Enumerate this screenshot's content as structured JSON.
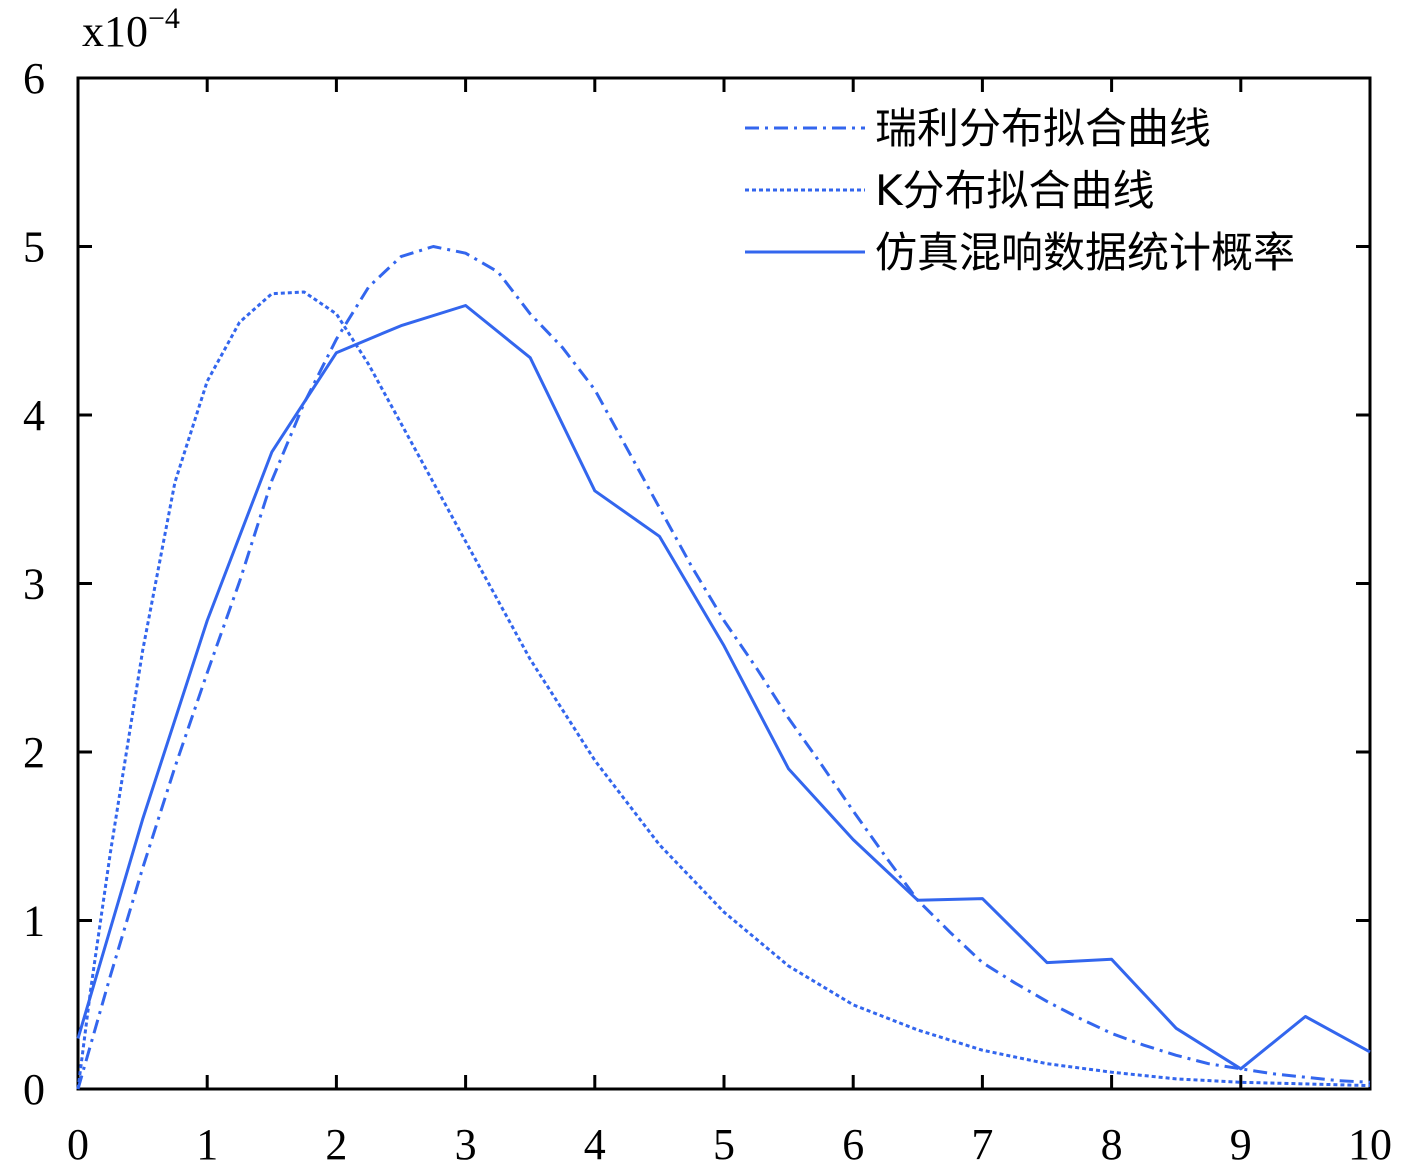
{
  "chart_data": {
    "type": "line",
    "title": "",
    "xlabel": "",
    "ylabel": "",
    "scale_label": {
      "base": "x10",
      "exponent": "−4"
    },
    "xlim": [
      0,
      10
    ],
    "ylim": [
      0,
      6
    ],
    "x_ticks": [
      "0",
      "1",
      "2",
      "3",
      "4",
      "5",
      "6",
      "7",
      "8",
      "9",
      "10"
    ],
    "y_ticks": [
      "0",
      "1",
      "2",
      "3",
      "4",
      "5",
      "6"
    ],
    "grid": false,
    "legend_position": "top-right",
    "color": "#3366ee",
    "series": [
      {
        "name": "瑞利分布拟合曲线",
        "style": "dashdot",
        "x": [
          0,
          0.25,
          0.5,
          0.75,
          1,
          1.25,
          1.5,
          1.75,
          2,
          2.25,
          2.5,
          2.75,
          3,
          3.25,
          3.5,
          3.75,
          4,
          4.25,
          4.5,
          4.75,
          5,
          5.25,
          5.5,
          5.75,
          6,
          6.25,
          6.5,
          6.75,
          7,
          7.25,
          7.5,
          7.75,
          8,
          8.25,
          8.5,
          8.75,
          9,
          9.25,
          9.5,
          9.75,
          10
        ],
        "values": [
          0,
          0.67,
          1.31,
          1.91,
          2.47,
          3.01,
          3.61,
          4.07,
          4.45,
          4.76,
          4.94,
          5.0,
          4.96,
          4.85,
          4.6,
          4.4,
          4.15,
          3.8,
          3.45,
          3.1,
          2.78,
          2.5,
          2.2,
          1.93,
          1.65,
          1.38,
          1.12,
          0.93,
          0.75,
          0.63,
          0.52,
          0.42,
          0.33,
          0.26,
          0.2,
          0.15,
          0.12,
          0.09,
          0.07,
          0.05,
          0.04
        ]
      },
      {
        "name": "K分布拟合曲线",
        "style": "dotted",
        "x": [
          0,
          0.1,
          0.25,
          0.5,
          0.75,
          1,
          1.25,
          1.5,
          1.75,
          2,
          2.25,
          2.5,
          2.75,
          3,
          3.5,
          4,
          4.5,
          5,
          5.5,
          6,
          6.5,
          7,
          7.5,
          8,
          8.5,
          9,
          9.5,
          10
        ],
        "values": [
          0,
          0.6,
          1.4,
          2.6,
          3.6,
          4.2,
          4.55,
          4.72,
          4.73,
          4.6,
          4.3,
          3.95,
          3.6,
          3.25,
          2.55,
          1.95,
          1.45,
          1.05,
          0.73,
          0.5,
          0.35,
          0.23,
          0.15,
          0.1,
          0.06,
          0.04,
          0.03,
          0.02
        ]
      },
      {
        "name": "仿真混响数据统计概率",
        "style": "solid",
        "x": [
          0,
          0.5,
          1,
          1.5,
          2,
          2.5,
          3,
          3.5,
          4,
          4.5,
          5,
          5.5,
          6,
          6.5,
          7,
          7.5,
          8,
          8.5,
          9,
          9.5,
          10
        ],
        "values": [
          0.3,
          1.6,
          2.78,
          3.78,
          4.37,
          4.53,
          4.65,
          4.34,
          3.55,
          3.28,
          2.63,
          1.9,
          1.48,
          1.12,
          1.13,
          0.75,
          0.77,
          0.36,
          0.12,
          0.43,
          0.22
        ]
      }
    ]
  }
}
